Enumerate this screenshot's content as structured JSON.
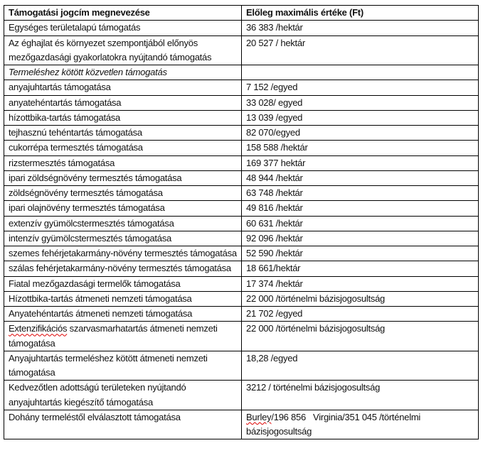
{
  "table": {
    "headers": [
      "Támogatási jogcím megnevezése",
      "Előleg maximális értéke (Ft)"
    ],
    "rows": [
      {
        "name": "Egységes területalapú támogatás",
        "value": "36 383 /hektár"
      },
      {
        "name": "Az éghajlat és környezet szempontjából előnyös mezőgazdasági gyakorlatokra nyújtandó támogatás",
        "value": "20 527 / hektár"
      },
      {
        "name": "Termeléshez kötött közvetlen támogatás",
        "value": "",
        "italic": true
      },
      {
        "name": "anyajuhtartás támogatása",
        "value": "7 152 /egyed"
      },
      {
        "name": "anyatehéntartás támogatása",
        "value": "33 028/ egyed"
      },
      {
        "name": "hízottbika-tartás támogatása",
        "value": "13 039 /egyed"
      },
      {
        "name": "tejhasznú tehéntartás támogatása",
        "value": "82 070/egyed"
      },
      {
        "name": "cukorrépa termesztés támogatása",
        "value": "158 588 /hektár"
      },
      {
        "name": "rizstermesztés támogatása",
        "value": "169 377 hektár"
      },
      {
        "name": "ipari zöldségnövény termesztés támogatása",
        "value": "48 944 /hektár"
      },
      {
        "name": "zöldségnövény termesztés támogatása",
        "value": "63 748 /hektár"
      },
      {
        "name": "ipari olajnövény termesztés támogatása",
        "value": "49 816 /hektár"
      },
      {
        "name": "extenzív gyümölcstermesztés támogatása",
        "value": "60 631 /hektár"
      },
      {
        "name": "intenzív gyümölcstermesztés támogatása",
        "value": "92 096 /hektár"
      },
      {
        "name": "szemes fehérjetakarmány-növény termesztés támogatása",
        "value": "52 590 /hektár"
      },
      {
        "name": "szálas fehérjetakarmány-növény termesztés támogatása",
        "value": "18 661/hektár"
      },
      {
        "name": "Fiatal mezőgazdasági termelők támogatása",
        "value": "17 374 /hektár"
      },
      {
        "name": "Hízottbika-tartás átmeneti nemzeti támogatása",
        "value": "22 000 /történelmi bázisjogosultság"
      },
      {
        "name": "Anyatehéntartás átmeneti nemzeti támogatása",
        "value": "21 702 /egyed"
      },
      {
        "name_first": "Extenzifikációs",
        "name": " szarvasmarhatartás átmeneti nemzeti támogatása",
        "value": "22 000 /történelmi bázisjogosultság"
      },
      {
        "name": "Anyajuhtartás termeléshez kötött átmeneti nemzeti támogatása",
        "value": "18,28 /egyed"
      },
      {
        "name": "Kedvezőtlen adottságú területeken nyújtandó anyajuhtartás kiegészítő támogatása",
        "value": "3212 / történelmi bázisjogosultság"
      },
      {
        "name": "Dohány termeléstől elválasztott támogatása",
        "value_first": "Burley",
        "value": "/196 856   Virginia/351 045 /történelmi bázisjogosultság"
      }
    ]
  }
}
